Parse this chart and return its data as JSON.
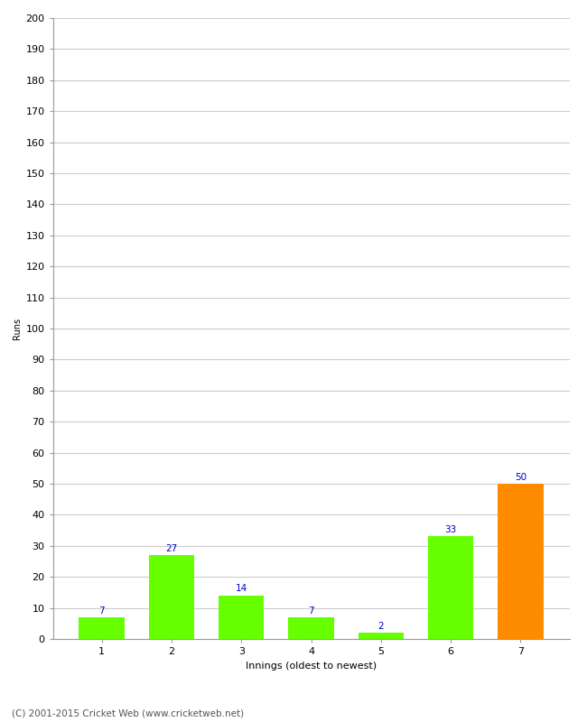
{
  "innings": [
    1,
    2,
    3,
    4,
    5,
    6,
    7
  ],
  "runs": [
    7,
    27,
    14,
    7,
    2,
    33,
    50
  ],
  "bar_colors": [
    "#66ff00",
    "#66ff00",
    "#66ff00",
    "#66ff00",
    "#66ff00",
    "#66ff00",
    "#ff8c00"
  ],
  "xlabel": "Innings (oldest to newest)",
  "ylabel": "Runs",
  "ylim": [
    0,
    200
  ],
  "yticks": [
    0,
    10,
    20,
    30,
    40,
    50,
    60,
    70,
    80,
    90,
    100,
    110,
    120,
    130,
    140,
    150,
    160,
    170,
    180,
    190,
    200
  ],
  "label_color": "#0000cc",
  "label_fontsize": 7.5,
  "axis_tick_fontsize": 8,
  "xlabel_fontsize": 8,
  "ylabel_fontsize": 7,
  "footer": "(C) 2001-2015 Cricket Web (www.cricketweb.net)",
  "footer_fontsize": 7.5,
  "background_color": "#ffffff",
  "grid_color": "#cccccc",
  "bar_width": 0.65,
  "xlim": [
    0.3,
    7.7
  ]
}
